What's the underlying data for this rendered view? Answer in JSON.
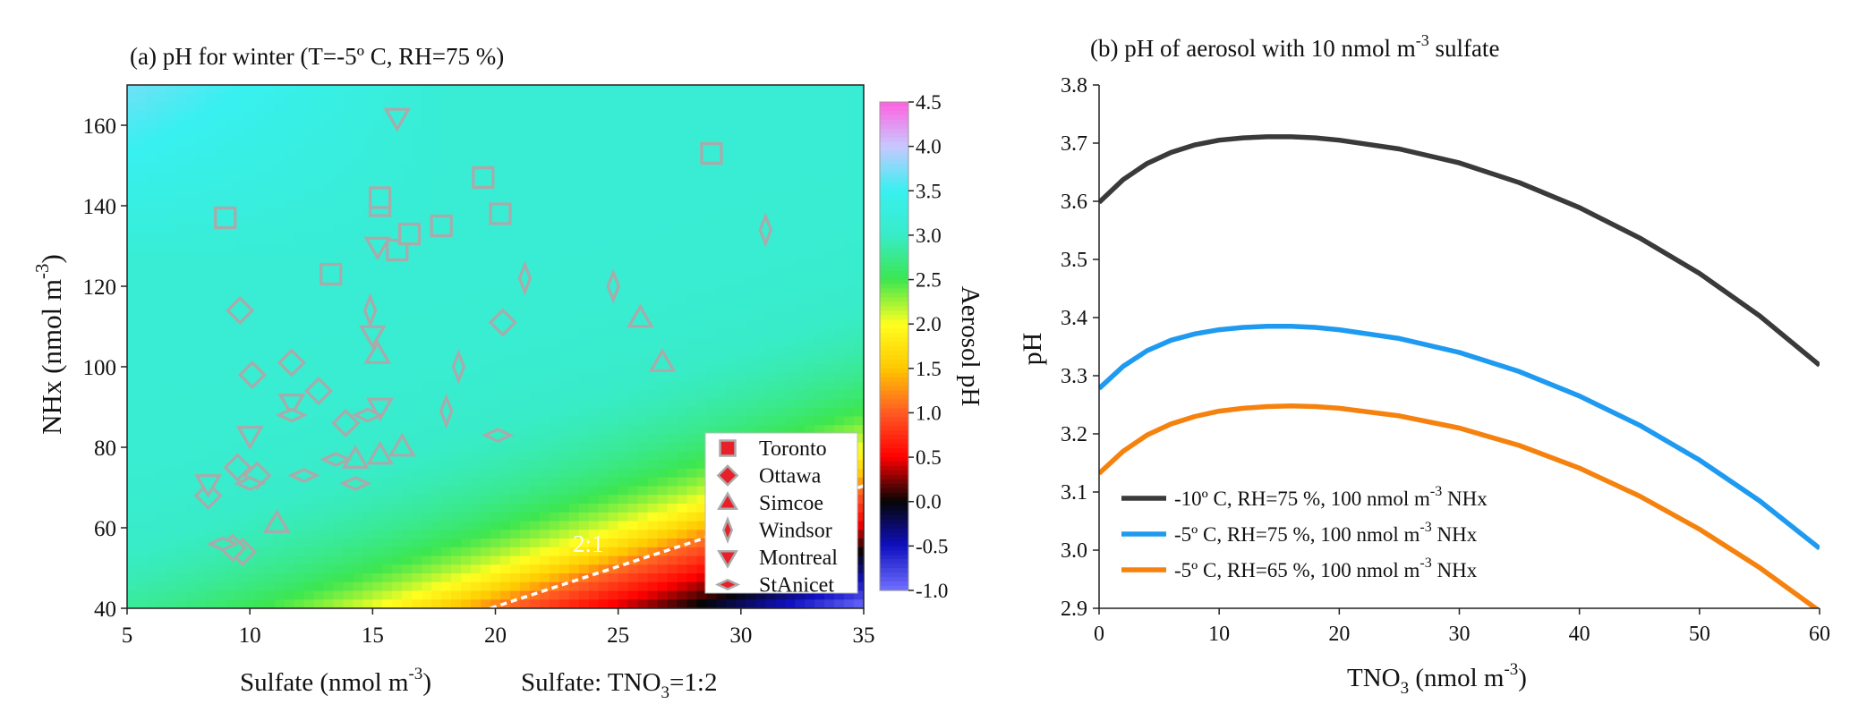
{
  "chart_data": [
    {
      "id": "panel-a",
      "type": "scatter",
      "title": "(a) pH for winter (T=-5º C, RH=75 %)",
      "xlabel": "Sulfate (nmol m",
      "xlabel_sup": "-3",
      "xlabel_end": ")",
      "xlabel_extra": "Sulfate: TNO",
      "xlabel_extra_sub": "3",
      "xlabel_extra_end": "=1:2",
      "ylabel": "NHx (nmol m",
      "ylabel_sup": "-3",
      "ylabel_end": ")",
      "xlim": [
        5,
        35
      ],
      "ylim": [
        40,
        170
      ],
      "xticks": [
        5,
        10,
        15,
        20,
        25,
        30,
        35
      ],
      "yticks": [
        40,
        60,
        80,
        100,
        120,
        140,
        160
      ],
      "background": "heatmap of aerosol pH over sulfate and NHx",
      "colorbar": {
        "label": "Aerosol pH",
        "range": [
          -1.0,
          4.5
        ],
        "ticks": [
          "4.5",
          "4.0",
          "3.5",
          "3.0",
          "2.5",
          "2.0",
          "1.5",
          "1.0",
          "0.5",
          "0.0",
          "-0.5",
          "-1.0"
        ],
        "colors": {
          "-1.0": "#7070ff",
          "-0.5": "#1010c0",
          "0.0": "#050505",
          "0.5": "#ff0000",
          "1.0": "#ff5a24",
          "1.5": "#ffc800",
          "2.0": "#ffff20",
          "2.5": "#3ce650",
          "3.0": "#38ecc8",
          "3.5": "#38f0f0",
          "4.0": "#c8c8ff",
          "4.5": "#ff60e0"
        }
      },
      "annotation": "2:1",
      "ratio_line": {
        "x": [
          19.8,
          35
        ],
        "y": [
          40,
          70.4
        ]
      },
      "marker_color": "#aaaaaa",
      "legend_placement": "bottom-right",
      "series": [
        {
          "name": "Toronto",
          "marker": "square",
          "legend_color": "#e8202a",
          "points": [
            [
              9,
              137
            ],
            [
              13.3,
              123
            ],
            [
              15.3,
              140
            ],
            [
              15.3,
              142
            ],
            [
              16,
              129
            ],
            [
              16.5,
              133
            ],
            [
              17.8,
              135
            ],
            [
              19.5,
              147
            ],
            [
              20.2,
              138
            ],
            [
              28.8,
              153
            ]
          ]
        },
        {
          "name": "Ottawa",
          "marker": "diamond",
          "legend_color": "#e8202a",
          "points": [
            [
              9.6,
              114
            ],
            [
              10.1,
              98
            ],
            [
              11.7,
              101
            ],
            [
              12.8,
              94
            ],
            [
              13.9,
              86
            ],
            [
              8.3,
              68
            ],
            [
              9.5,
              75
            ],
            [
              10.3,
              73
            ],
            [
              20.3,
              111
            ],
            [
              9.7,
              54
            ],
            [
              9.3,
              55
            ]
          ]
        },
        {
          "name": "Simcoe",
          "marker": "triangle-up",
          "legend_color": "#e8202a",
          "points": [
            [
              15.2,
              103
            ],
            [
              15.3,
              78
            ],
            [
              16.2,
              80
            ],
            [
              14.3,
              77
            ],
            [
              11.1,
              61
            ],
            [
              25.9,
              112
            ],
            [
              26.8,
              101
            ]
          ]
        },
        {
          "name": "Windsor",
          "marker": "thin-diamond",
          "legend_color": "#e8202a",
          "points": [
            [
              14.9,
              114
            ],
            [
              18,
              89
            ],
            [
              18.5,
              100
            ],
            [
              21.2,
              122
            ],
            [
              24.8,
              120
            ],
            [
              31,
              134
            ]
          ]
        },
        {
          "name": "Montreal",
          "marker": "triangle-down",
          "legend_color": "#e8202a",
          "points": [
            [
              16,
              162
            ],
            [
              15.2,
              130
            ],
            [
              15,
              108
            ],
            [
              15.3,
              90
            ],
            [
              11.7,
              91
            ],
            [
              10,
              83
            ],
            [
              8.3,
              71
            ]
          ]
        },
        {
          "name": "StAnicet",
          "marker": "flat-diamond",
          "legend_color": "#e8202a",
          "points": [
            [
              11.7,
              88
            ],
            [
              12.2,
              73
            ],
            [
              13.5,
              77
            ],
            [
              14.3,
              71
            ],
            [
              14.8,
              88
            ],
            [
              20.1,
              83
            ],
            [
              10,
              71
            ],
            [
              8.9,
              56
            ]
          ]
        }
      ],
      "legend": [
        "Toronto",
        "Ottawa",
        "Simcoe",
        "Windsor",
        "Montreal",
        "StAnicet"
      ]
    },
    {
      "id": "panel-b",
      "type": "line",
      "title": "(b) pH of aerosol with 10 nmol m",
      "title_sup": "-3",
      "title_end": " sulfate",
      "xlabel": "TNO",
      "xlabel_sub": "3",
      "xlabel_mid": " (nmol m",
      "xlabel_sup": "-3",
      "xlabel_end": ")",
      "ylabel": "pH",
      "xlim": [
        0,
        60
      ],
      "ylim": [
        2.9,
        3.8
      ],
      "xticks": [
        0,
        10,
        20,
        30,
        40,
        50,
        60
      ],
      "yticks": [
        2.9,
        3.0,
        3.1,
        3.2,
        3.3,
        3.4,
        3.5,
        3.6,
        3.7,
        3.8
      ],
      "legend_placement": "bottom-left",
      "x": [
        0,
        2,
        4,
        6,
        8,
        10,
        12,
        14,
        16,
        18,
        20,
        25,
        30,
        35,
        40,
        45,
        50,
        55,
        60
      ],
      "series": [
        {
          "name": "-10º C, RH=75 %, 100 nmol m",
          "name_sup": "-3",
          "name_end": " NHx",
          "color": "#3a3a3a",
          "values": [
            3.598,
            3.637,
            3.665,
            3.684,
            3.697,
            3.705,
            3.709,
            3.711,
            3.711,
            3.709,
            3.705,
            3.69,
            3.666,
            3.632,
            3.589,
            3.537,
            3.476,
            3.403,
            3.318
          ]
        },
        {
          "name": "-5º C, RH=75 %, 100 nmol m",
          "name_sup": "-3",
          "name_end": " NHx",
          "color": "#1e9af0",
          "values": [
            3.278,
            3.316,
            3.343,
            3.361,
            3.372,
            3.379,
            3.383,
            3.385,
            3.385,
            3.383,
            3.379,
            3.364,
            3.34,
            3.307,
            3.265,
            3.215,
            3.155,
            3.085,
            3.003
          ]
        },
        {
          "name": "-5º C, RH=65 %, 100 nmol m",
          "name_sup": "-3",
          "name_end": " NHx",
          "color": "#f5820e",
          "values": [
            3.132,
            3.17,
            3.198,
            3.217,
            3.23,
            3.239,
            3.244,
            3.247,
            3.248,
            3.247,
            3.244,
            3.231,
            3.21,
            3.18,
            3.141,
            3.093,
            3.036,
            2.97,
            2.895
          ]
        }
      ]
    }
  ]
}
